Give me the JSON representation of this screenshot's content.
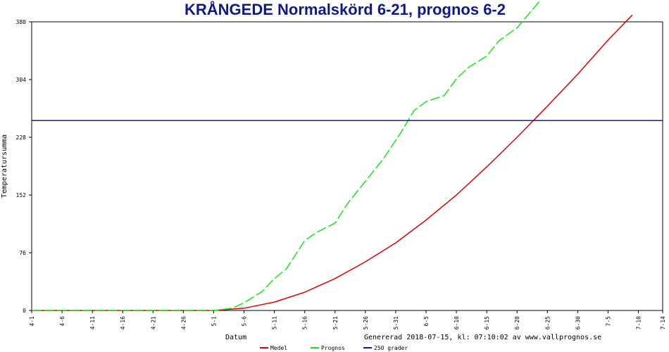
{
  "chart_data": {
    "type": "line",
    "title": "KRÅNGEDE Normalskörd 6-21, prognos 6-2",
    "xlabel": "Datum",
    "ylabel": "Temperatursumma",
    "footer": "Genererad 2018-07-15, kl: 07:10:02 av www.vallprognos.se",
    "ylim": [
      0,
      380
    ],
    "y_ticks": [
      "0",
      "76",
      "152",
      "228",
      "304",
      "380"
    ],
    "x_ticks": [
      "4-1",
      "4-6",
      "4-11",
      "4-16",
      "4-21",
      "4-26",
      "5-1",
      "5-6",
      "5-11",
      "5-16",
      "5-21",
      "5-26",
      "5-31",
      "6-5",
      "6-10",
      "6-15",
      "6-20",
      "6-25",
      "6-30",
      "7-5",
      "7-10",
      "7-14"
    ],
    "x_domain": [
      "4-1",
      "7-14"
    ],
    "grid": false,
    "legend_position": "bottom",
    "series": [
      {
        "name": "Medel",
        "color": "#e00000",
        "style": "solid",
        "x": [
          "4-1",
          "4-20",
          "5-1",
          "5-6",
          "5-11",
          "5-16",
          "5-21",
          "5-26",
          "5-31",
          "6-5",
          "6-10",
          "6-15",
          "6-20",
          "6-25",
          "6-30",
          "7-5",
          "7-9"
        ],
        "values": [
          0,
          0,
          0,
          3,
          11,
          24,
          42,
          64,
          89,
          119,
          152,
          189,
          228,
          269,
          311,
          356,
          389
        ]
      },
      {
        "name": "Prognos",
        "color": "#16e616",
        "style": "dashed",
        "x": [
          "4-1",
          "5-1",
          "5-4",
          "5-6",
          "5-9",
          "5-11",
          "5-13",
          "5-16",
          "5-18",
          "5-21",
          "5-23",
          "5-26",
          "5-29",
          "6-1",
          "6-3",
          "6-5",
          "6-8",
          "6-10",
          "6-12",
          "6-15",
          "6-17",
          "6-20",
          "6-24"
        ],
        "values": [
          0,
          0,
          3,
          10,
          25,
          42,
          55,
          92,
          103,
          115,
          140,
          170,
          200,
          236,
          263,
          275,
          283,
          305,
          320,
          335,
          355,
          372,
          410
        ]
      },
      {
        "name": "250 grader",
        "color": "#1414b4",
        "style": "solid",
        "x": [
          "4-1",
          "7-14"
        ],
        "values": [
          250,
          250
        ]
      }
    ]
  }
}
